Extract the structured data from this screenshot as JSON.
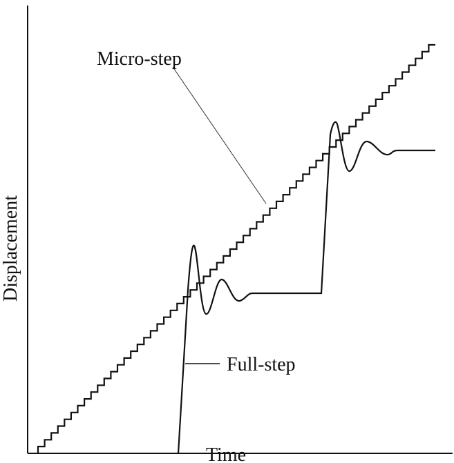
{
  "labels": {
    "micro_step": "Micro-step",
    "full_step": "Full-step"
  },
  "axes": {
    "y_label": "Displacement",
    "x_label": "Time"
  }
}
